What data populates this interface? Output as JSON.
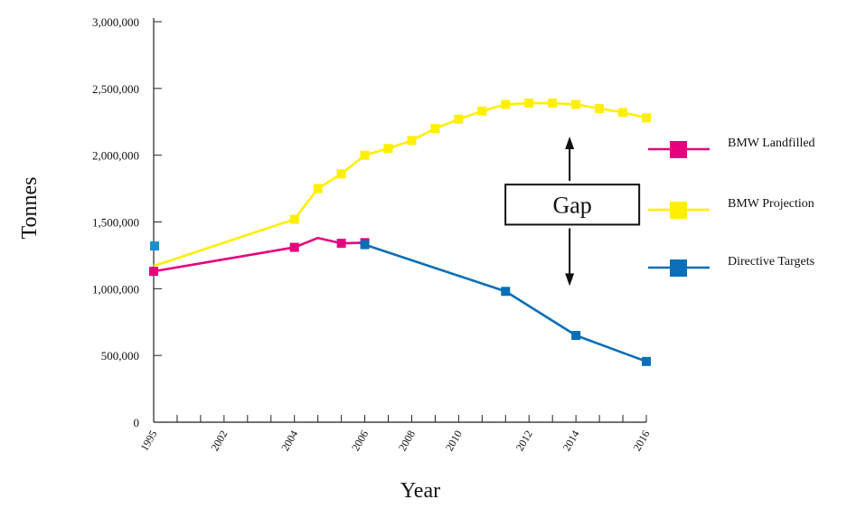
{
  "chart_data": {
    "type": "line",
    "xlabel": "Year",
    "ylabel": "Tonnes",
    "ylim": [
      0,
      3000000
    ],
    "y_ticks": [
      {
        "value": 0,
        "label": "0"
      },
      {
        "value": 500000,
        "label": "500,000"
      },
      {
        "value": 1000000,
        "label": "1,000,000"
      },
      {
        "value": 1500000,
        "label": "1,500,000"
      },
      {
        "value": 2000000,
        "label": "2,000,000"
      },
      {
        "value": 2500000,
        "label": "2,500,000"
      },
      {
        "value": 3000000,
        "label": "3,000,000"
      }
    ],
    "x_tick_labels": [
      {
        "slot": 0,
        "label": "1995"
      },
      {
        "slot": 3,
        "label": "2002"
      },
      {
        "slot": 6,
        "label": "2004"
      },
      {
        "slot": 9,
        "label": "2006"
      },
      {
        "slot": 11,
        "label": "2008"
      },
      {
        "slot": 13,
        "label": "2010"
      },
      {
        "slot": 16,
        "label": "2012"
      },
      {
        "slot": 18,
        "label": "2014"
      },
      {
        "slot": 21,
        "label": "2016"
      }
    ],
    "x_slot_count": 21,
    "grid": false,
    "legend_position": "right",
    "series": [
      {
        "name": "BMW Landfilled",
        "color": "#e6007e",
        "points": [
          {
            "slot": 0,
            "value": 1130000,
            "marker": true
          },
          {
            "slot": 6,
            "value": 1310000,
            "marker": true
          },
          {
            "slot": 7,
            "value": 1380000,
            "marker": false
          },
          {
            "slot": 8,
            "value": 1340000,
            "marker": true
          },
          {
            "slot": 9,
            "value": 1345000,
            "marker": true
          }
        ]
      },
      {
        "name": "BMW Projection",
        "color": "#ffef00",
        "points": [
          {
            "slot": 0,
            "value": 1170000,
            "marker": false
          },
          {
            "slot": 6,
            "value": 1520000,
            "marker": true
          },
          {
            "slot": 7,
            "value": 1750000,
            "marker": true
          },
          {
            "slot": 8,
            "value": 1860000,
            "marker": true
          },
          {
            "slot": 9,
            "value": 2000000,
            "marker": true
          },
          {
            "slot": 10,
            "value": 2050000,
            "marker": true
          },
          {
            "slot": 11,
            "value": 2110000,
            "marker": true
          },
          {
            "slot": 12,
            "value": 2200000,
            "marker": true
          },
          {
            "slot": 13,
            "value": 2270000,
            "marker": true
          },
          {
            "slot": 14,
            "value": 2330000,
            "marker": true
          },
          {
            "slot": 15,
            "value": 2380000,
            "marker": true
          },
          {
            "slot": 16,
            "value": 2390000,
            "marker": true
          },
          {
            "slot": 17,
            "value": 2390000,
            "marker": true
          },
          {
            "slot": 18,
            "value": 2380000,
            "marker": true
          },
          {
            "slot": 19,
            "value": 2350000,
            "marker": true
          },
          {
            "slot": 20,
            "value": 2320000,
            "marker": true
          },
          {
            "slot": 21,
            "value": 2280000,
            "marker": true
          }
        ]
      },
      {
        "name": "Directive Targets",
        "color": "#0a6fb8",
        "points": [
          {
            "slot": 9,
            "value": 1330000,
            "marker": true
          },
          {
            "slot": 15,
            "value": 980000,
            "marker": true
          },
          {
            "slot": 18,
            "value": 650000,
            "marker": true
          },
          {
            "slot": 21,
            "value": 455000,
            "marker": true
          }
        ]
      }
    ],
    "extra_points": [
      {
        "slot": 0,
        "value": 1320000,
        "color": "#1a8fd0"
      }
    ],
    "annotation": {
      "label": "Gap",
      "x_slot": 18,
      "box_top_value": 1780000,
      "box_bottom_value": 1480000,
      "arrow_up_value": 2140000,
      "arrow_down_value": 1020000
    }
  }
}
